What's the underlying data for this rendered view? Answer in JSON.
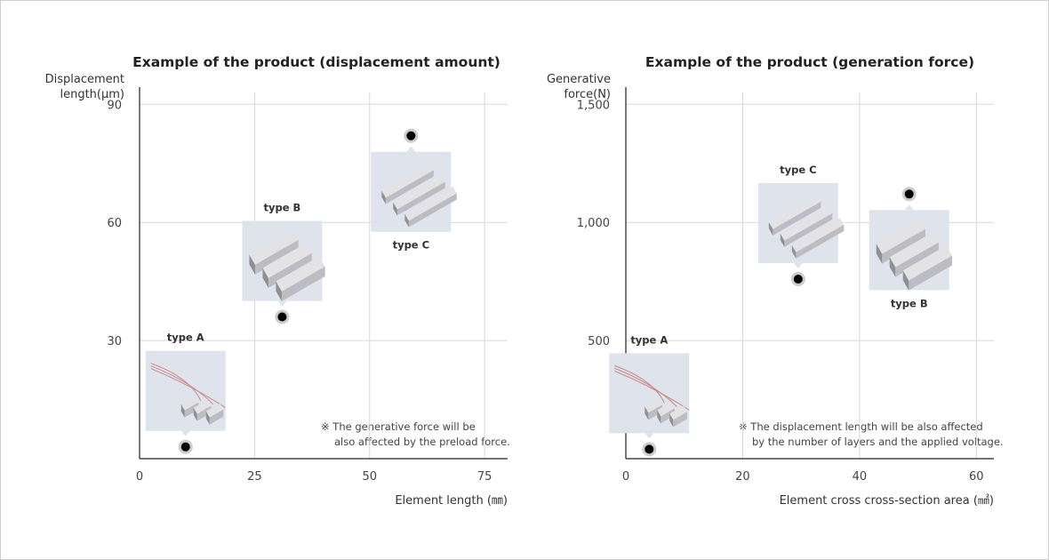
{
  "colors": {
    "axis": "#222222",
    "grid": "#d8d8d8",
    "point": "#000000",
    "point_halo": "#cccccc",
    "image_box": "#dfe3ec",
    "rod_light": "#e3e3e6",
    "rod_mid": "#bcbcc2",
    "rod_dark": "#8f8f96",
    "wire": "#c98a8a"
  },
  "chart_data": [
    {
      "type": "scatter",
      "title": "Example of the product (displacement amount)",
      "ylabel_line1": "Displacement",
      "ylabel_line2": "length(μm)",
      "xlabel": "Element length (㎜)",
      "xlim": [
        0,
        80
      ],
      "ylim": [
        0,
        93
      ],
      "x_ticks": [
        0,
        25,
        50,
        75
      ],
      "x_tick_labels": [
        "0",
        "25",
        "50",
        "75"
      ],
      "y_ticks": [
        30,
        60,
        90
      ],
      "y_tick_labels": [
        "30",
        "60",
        "90"
      ],
      "grid": true,
      "points": [
        {
          "label": "type A",
          "x": 10,
          "y": 3,
          "image": "wired-small-rods",
          "label_position": "above-image",
          "image_position": "above-point"
        },
        {
          "label": "type B",
          "x": 31,
          "y": 36,
          "image": "square-block-rods",
          "label_position": "above-image",
          "image_position": "above-point"
        },
        {
          "label": "type C",
          "x": 59,
          "y": 82,
          "image": "thin-long-rods",
          "label_position": "below-image",
          "image_position": "below-point"
        }
      ],
      "note_line1": "※ The generative force will be",
      "note_line2": "also affected by the preload force."
    },
    {
      "type": "scatter",
      "title": "Example of the product (generation force)",
      "ylabel_line1": "Generative",
      "ylabel_line2": "force(N)",
      "xlabel": "Element cross cross-section area (㎟)",
      "xlim": [
        0,
        63
      ],
      "ylim": [
        0,
        1550
      ],
      "x_ticks": [
        0,
        20,
        40,
        60
      ],
      "x_tick_labels": [
        "0",
        "20",
        "40",
        "60"
      ],
      "y_ticks": [
        500,
        1000,
        1500
      ],
      "y_tick_labels": [
        "500",
        "1,000",
        "1,500"
      ],
      "grid": true,
      "points": [
        {
          "label": "type A",
          "x": 4,
          "y": 40,
          "image": "wired-small-rods",
          "label_position": "above-image",
          "image_position": "above-point"
        },
        {
          "label": "type C",
          "x": 29.5,
          "y": 760,
          "image": "thin-long-rods",
          "label_position": "above-image",
          "image_position": "above-point"
        },
        {
          "label": "type B",
          "x": 48.5,
          "y": 1120,
          "image": "square-block-rods",
          "label_position": "below-image",
          "image_position": "below-point"
        }
      ],
      "note_line1": "※ The displacement length will be also affected",
      "note_line2": "by the number of layers and the applied voltage."
    }
  ]
}
